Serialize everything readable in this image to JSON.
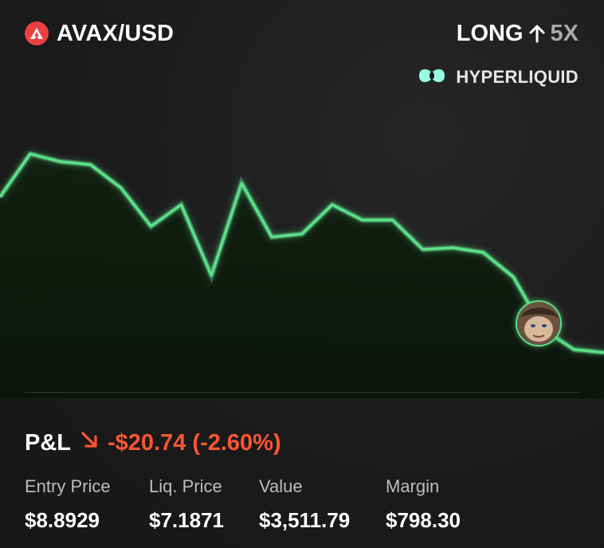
{
  "header": {
    "pair": "AVAX/USD",
    "direction": "LONG",
    "leverage": "5X",
    "exchange": "HYPERLIQUID"
  },
  "colors": {
    "line": "#5ce08a",
    "negative": "#ff5533",
    "avax": "#e84142",
    "hyperliquid": "#97fce4"
  },
  "icons": [
    "avax-logo-icon",
    "arrow-up-icon",
    "hyperliquid-logo-icon",
    "arrow-down-right-icon",
    "avatar"
  ],
  "chart_data": {
    "type": "line",
    "title": "",
    "xlabel": "",
    "ylabel": "",
    "grid": false,
    "series": [
      {
        "values": [
          9.05,
          9.33,
          9.28,
          9.26,
          9.11,
          8.86,
          9.0,
          8.54,
          9.14,
          8.79,
          8.81,
          9.0,
          8.9,
          8.9,
          8.71,
          8.72,
          8.69,
          8.53,
          8.19,
          8.06,
          8.04
        ]
      }
    ],
    "ylim": [
      7.95,
      9.45
    ]
  },
  "pnl": {
    "label": "P&L",
    "value": "-$20.74 (-2.60%)"
  },
  "stats": [
    {
      "label": "Entry Price",
      "value": "$8.8929"
    },
    {
      "label": "Liq. Price",
      "value": "$7.1871"
    },
    {
      "label": "Value",
      "value": "$3,511.79"
    },
    {
      "label": "Margin",
      "value": "$798.30"
    }
  ]
}
